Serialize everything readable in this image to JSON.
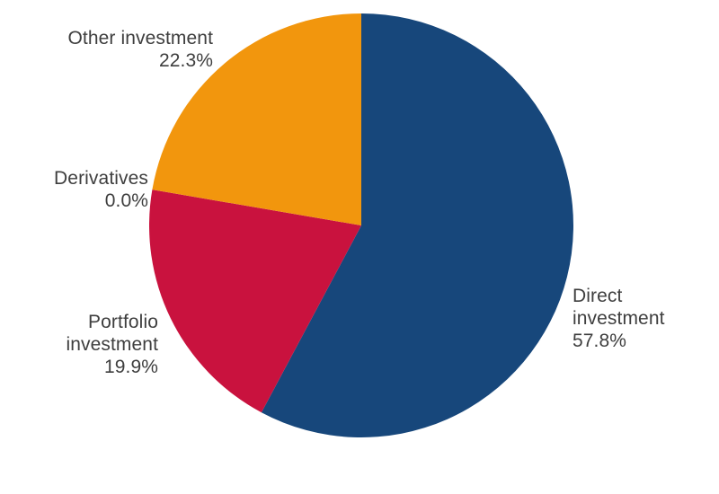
{
  "chart_data": {
    "type": "pie",
    "start_angle_deg": 0,
    "direction": "clockwise",
    "legend": "none",
    "labels_position": "outside",
    "slices": [
      {
        "label": "Direct investment",
        "pct_label": "57.8%",
        "value": 57.8,
        "color": "#17477b"
      },
      {
        "label": "Portfolio investment",
        "pct_label": "19.9%",
        "value": 19.9,
        "color": "#c9123e"
      },
      {
        "label": "Derivatives",
        "pct_label": "0.0%",
        "value": 0.0,
        "color": null
      },
      {
        "label": "Other investment",
        "pct_label": "22.3%",
        "value": 22.3,
        "color": "#f2960d"
      }
    ],
    "text_color": "#3e3e3e"
  }
}
